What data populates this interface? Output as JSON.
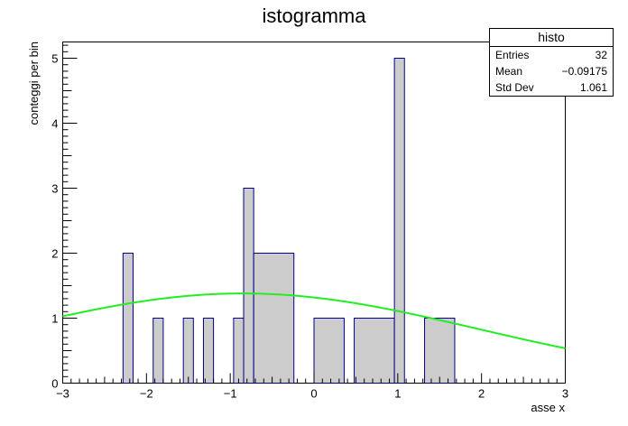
{
  "chart_data": {
    "type": "bar",
    "title": "istogramma",
    "xlabel": "asse x",
    "ylabel": "conteggi per bin",
    "xlim": [
      -3,
      3
    ],
    "ylim": [
      0,
      5.25
    ],
    "x_ticks": [
      -3,
      -2,
      -1,
      0,
      1,
      2,
      3
    ],
    "y_ticks": [
      0,
      1,
      2,
      3,
      4,
      5
    ],
    "bins": [
      {
        "lo": -2.28,
        "hi": -2.16,
        "value": 2
      },
      {
        "lo": -1.92,
        "hi": -1.8,
        "value": 1
      },
      {
        "lo": -1.56,
        "hi": -1.44,
        "value": 1
      },
      {
        "lo": -1.32,
        "hi": -1.2,
        "value": 1
      },
      {
        "lo": -0.96,
        "hi": -0.84,
        "value": 1
      },
      {
        "lo": -0.84,
        "hi": -0.72,
        "value": 3
      },
      {
        "lo": -0.72,
        "hi": -0.24,
        "value": 2
      },
      {
        "lo": 0.0,
        "hi": 0.36,
        "value": 1
      },
      {
        "lo": 0.48,
        "hi": 0.96,
        "value": 1
      },
      {
        "lo": 0.96,
        "hi": 1.08,
        "value": 5
      },
      {
        "lo": 1.32,
        "hi": 1.68,
        "value": 1
      }
    ],
    "fit": {
      "type": "gaussian",
      "constant": 1.38,
      "mean": -0.85,
      "sigma": 2.8
    },
    "colors": {
      "bar_fill": "#cccccc",
      "bar_edge": "#000080",
      "fit_line": "#22ee22"
    },
    "grid": false,
    "legend": "top-right"
  },
  "stats": {
    "title": "histo",
    "rows": [
      {
        "label": "Entries",
        "value": "32"
      },
      {
        "label": "Mean",
        "value": "−0.09175"
      },
      {
        "label": "Std Dev",
        "value": "1.061"
      }
    ]
  }
}
